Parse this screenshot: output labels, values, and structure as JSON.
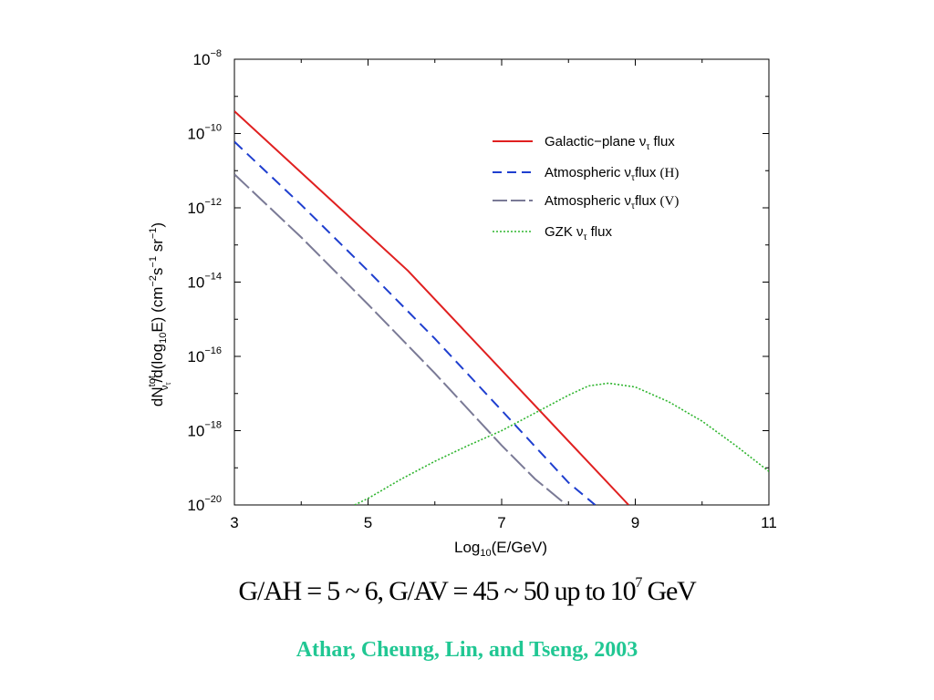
{
  "chart_data": {
    "type": "line",
    "xlabel": "Log₁₀(E/GeV)",
    "ylabel": "dN^tot_ντ / d(log₁₀E)  (cm⁻² s⁻¹ sr⁻¹)",
    "xlim": [
      3,
      11
    ],
    "ylim": [
      1e-20,
      1e-08
    ],
    "yscale": "log",
    "x_ticks": [
      3,
      5,
      7,
      9,
      11
    ],
    "x_tick_labels": [
      "3",
      "5",
      "7",
      "9",
      "11"
    ],
    "y_ticks": [
      1e-20,
      1e-18,
      1e-16,
      1e-14,
      1e-12,
      1e-10,
      1e-08
    ],
    "y_tick_labels": [
      "10⁻²⁰",
      "10⁻¹⁸",
      "10⁻¹⁶",
      "10⁻¹⁴",
      "10⁻¹²",
      "10⁻¹⁰",
      "10⁻⁸"
    ],
    "grid": false,
    "legend_position": "top-right",
    "series": [
      {
        "name": "Galactic−plane ντ flux",
        "color": "#e02020",
        "style": "solid",
        "x": [
          3.0,
          5.6,
          8.9
        ],
        "y": [
          4e-10,
          2e-14,
          1e-20
        ]
      },
      {
        "name": "Atmospheric ντ flux (H)",
        "color": "#1f3fcf",
        "style": "dashed",
        "x": [
          3.0,
          4.0,
          5.0,
          6.0,
          7.0,
          8.0,
          8.4
        ],
        "y": [
          6e-11,
          1.2e-12,
          2e-14,
          3e-16,
          3.5e-18,
          4e-20,
          1e-20
        ]
      },
      {
        "name": "Atmospheric ντ flux (V)",
        "color": "#7a7a96",
        "style": "longdash",
        "x": [
          3.0,
          4.0,
          5.0,
          6.0,
          7.0,
          7.5,
          7.97
        ],
        "y": [
          8e-12,
          1.6e-13,
          2.5e-15,
          3.5e-17,
          4e-19,
          5e-20,
          1e-20
        ]
      },
      {
        "name": "GZK ντ flux",
        "color": "#2fb52f",
        "style": "dotted",
        "x": [
          4.8,
          5.0,
          5.5,
          6.0,
          6.5,
          7.0,
          7.5,
          8.0,
          8.3,
          8.6,
          9.0,
          9.5,
          10.0,
          10.5,
          11.0
        ],
        "y": [
          1e-20,
          1.5e-20,
          5e-20,
          1.5e-19,
          4e-19,
          1e-18,
          3e-18,
          9e-18,
          1.6e-17,
          1.9e-17,
          1.5e-17,
          6e-18,
          1.8e-18,
          4e-19,
          8e-20
        ]
      }
    ]
  },
  "footer": {
    "equation_main": "G/AH = 5 ~ 6, G/AV = 45 ~ 50 up to 10",
    "equation_exp": "7",
    "equation_tail": " GeV",
    "citation": "Athar, Cheung, Lin, and Tseng, 2003",
    "citation_color": "#21c793"
  }
}
